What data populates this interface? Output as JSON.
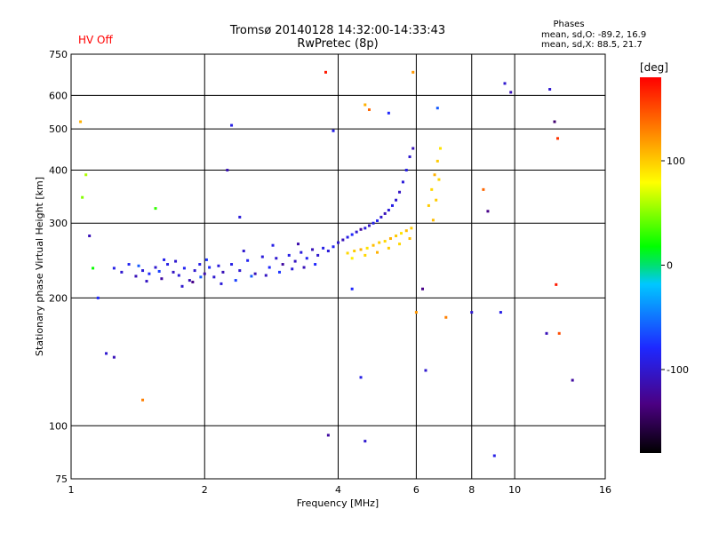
{
  "header": {
    "title_line1": "Tromsø 20140128 14:32:00-14:33:43",
    "title_line2": "RwPretec (8p)",
    "status": "HV Off",
    "status_color": "#ff0000",
    "phases_title": "Phases",
    "phases_o": "mean, sd,O: -89.2, 16.9",
    "phases_x": "mean, sd,X: 88.5, 21.7"
  },
  "colorbar": {
    "unit": "[deg]",
    "range": [
      -180,
      180
    ],
    "ticks": [
      {
        "value": 100,
        "label": "100"
      },
      {
        "value": 0,
        "label": "0"
      },
      {
        "value": -100,
        "label": "-100"
      }
    ]
  },
  "chart_data": {
    "type": "scatter",
    "xlabel": "Frequency [MHz]",
    "ylabel": "Stationary phase Virtual Height [km]",
    "xscale": "log",
    "yscale": "log",
    "xlim": [
      1,
      16
    ],
    "ylim": [
      75,
      750
    ],
    "xticks": [
      {
        "value": 1,
        "label": "1"
      },
      {
        "value": 2,
        "label": "2"
      },
      {
        "value": 4,
        "label": "4"
      },
      {
        "value": 6,
        "label": "6"
      },
      {
        "value": 8,
        "label": "8"
      },
      {
        "value": 10,
        "label": "10"
      },
      {
        "value": 16,
        "label": "16"
      }
    ],
    "yticks": [
      {
        "value": 75,
        "label": "75"
      },
      {
        "value": 100,
        "label": "100"
      },
      {
        "value": 200,
        "label": "200"
      },
      {
        "value": 300,
        "label": "300"
      },
      {
        "value": 400,
        "label": "400"
      },
      {
        "value": 500,
        "label": "500"
      },
      {
        "value": 600,
        "label": "600"
      },
      {
        "value": 750,
        "label": "750"
      }
    ],
    "grid": true,
    "series": [
      {
        "values": [
          [
            1.25,
            235,
            -90
          ],
          [
            1.3,
            230,
            -100
          ],
          [
            1.35,
            240,
            -85
          ],
          [
            1.4,
            225,
            -110
          ],
          [
            1.45,
            232,
            -95
          ],
          [
            1.5,
            228,
            -80
          ],
          [
            1.55,
            236,
            -100
          ],
          [
            1.6,
            222,
            -120
          ],
          [
            1.65,
            240,
            -90
          ],
          [
            1.7,
            230,
            -105
          ],
          [
            1.75,
            226,
            -95
          ],
          [
            1.8,
            235,
            -85
          ],
          [
            1.85,
            220,
            -110
          ],
          [
            1.9,
            232,
            -100
          ],
          [
            1.95,
            240,
            -90
          ],
          [
            2.0,
            228,
            -115
          ],
          [
            2.05,
            236,
            -80
          ],
          [
            2.1,
            224,
            -100
          ],
          [
            2.15,
            238,
            -95
          ],
          [
            2.2,
            230,
            -110
          ],
          [
            1.42,
            238,
            -60
          ],
          [
            1.58,
            231,
            -70
          ],
          [
            1.72,
            244,
            -100
          ],
          [
            1.88,
            218,
            -130
          ],
          [
            2.02,
            246,
            -75
          ],
          [
            2.18,
            216,
            -95
          ],
          [
            1.48,
            219,
            -105
          ],
          [
            1.62,
            246,
            -88
          ],
          [
            1.78,
            213,
            -100
          ],
          [
            1.96,
            224,
            -60
          ],
          [
            2.3,
            240,
            -90
          ],
          [
            2.4,
            232,
            -100
          ],
          [
            2.5,
            245,
            -85
          ],
          [
            2.6,
            228,
            -110
          ],
          [
            2.7,
            250,
            -95
          ],
          [
            2.8,
            236,
            -80
          ],
          [
            2.9,
            248,
            -100
          ],
          [
            3.0,
            240,
            -120
          ],
          [
            3.1,
            252,
            -90
          ],
          [
            3.2,
            244,
            -105
          ],
          [
            3.3,
            256,
            -95
          ],
          [
            3.4,
            248,
            -85
          ],
          [
            3.5,
            260,
            -110
          ],
          [
            3.6,
            252,
            -100
          ],
          [
            3.7,
            262,
            -90
          ],
          [
            2.35,
            220,
            -70
          ],
          [
            2.55,
            225,
            -60
          ],
          [
            2.75,
            226,
            -105
          ],
          [
            2.95,
            230,
            -75
          ],
          [
            3.15,
            234,
            -95
          ],
          [
            3.35,
            236,
            -110
          ],
          [
            3.55,
            240,
            -80
          ],
          [
            2.45,
            258,
            -100
          ],
          [
            2.85,
            266,
            -90
          ],
          [
            3.25,
            268,
            -115
          ],
          [
            3.8,
            258,
            -95
          ],
          [
            3.9,
            264,
            -85
          ],
          [
            4.0,
            270,
            -100
          ],
          [
            4.1,
            274,
            -110
          ],
          [
            4.2,
            278,
            -90
          ],
          [
            4.3,
            282,
            -80
          ],
          [
            4.4,
            286,
            -100
          ],
          [
            4.5,
            290,
            -120
          ],
          [
            4.6,
            292,
            -95
          ],
          [
            4.7,
            296,
            -105
          ],
          [
            4.8,
            300,
            -90
          ],
          [
            4.9,
            304,
            -85
          ],
          [
            5.0,
            310,
            -100
          ],
          [
            5.1,
            316,
            -110
          ],
          [
            5.2,
            322,
            -95
          ],
          [
            5.3,
            330,
            -90
          ],
          [
            5.4,
            340,
            -100
          ],
          [
            5.5,
            355,
            -105
          ],
          [
            5.6,
            375,
            -95
          ],
          [
            5.7,
            400,
            -90
          ],
          [
            5.8,
            430,
            -100
          ],
          [
            5.9,
            450,
            -110
          ],
          [
            4.2,
            255,
            95
          ],
          [
            4.35,
            258,
            100
          ],
          [
            4.5,
            260,
            110
          ],
          [
            4.65,
            262,
            90
          ],
          [
            4.8,
            266,
            105
          ],
          [
            4.95,
            270,
            100
          ],
          [
            5.1,
            272,
            95
          ],
          [
            5.25,
            276,
            110
          ],
          [
            5.4,
            280,
            100
          ],
          [
            5.55,
            284,
            90
          ],
          [
            5.7,
            288,
            105
          ],
          [
            5.85,
            292,
            100
          ],
          [
            4.3,
            248,
            85
          ],
          [
            4.6,
            252,
            95
          ],
          [
            4.9,
            256,
            110
          ],
          [
            5.2,
            262,
            100
          ],
          [
            5.5,
            268,
            95
          ],
          [
            5.8,
            276,
            105
          ],
          [
            6.4,
            330,
            100
          ],
          [
            6.5,
            360,
            95
          ],
          [
            6.6,
            390,
            110
          ],
          [
            6.7,
            420,
            100
          ],
          [
            6.8,
            450,
            90
          ],
          [
            6.55,
            305,
            105
          ],
          [
            6.65,
            340,
            100
          ],
          [
            6.75,
            380,
            95
          ],
          [
            1.05,
            520,
            110
          ],
          [
            1.08,
            390,
            60
          ],
          [
            1.06,
            345,
            50
          ],
          [
            1.1,
            280,
            -110
          ],
          [
            1.12,
            235,
            20
          ],
          [
            1.2,
            148,
            -100
          ],
          [
            1.25,
            145,
            -110
          ],
          [
            1.55,
            325,
            30
          ],
          [
            1.45,
            115,
            130
          ],
          [
            2.25,
            400,
            -110
          ],
          [
            2.3,
            510,
            -90
          ],
          [
            2.4,
            310,
            -95
          ],
          [
            3.75,
            680,
            170
          ],
          [
            3.9,
            495,
            -90
          ],
          [
            4.6,
            570,
            110
          ],
          [
            4.7,
            555,
            140
          ],
          [
            5.2,
            545,
            -80
          ],
          [
            5.9,
            680,
            120
          ],
          [
            6.7,
            560,
            -60
          ],
          [
            7.0,
            180,
            130
          ],
          [
            8.5,
            360,
            140
          ],
          [
            8.7,
            320,
            -130
          ],
          [
            9.5,
            640,
            -100
          ],
          [
            9.8,
            610,
            -110
          ],
          [
            12.0,
            620,
            -100
          ],
          [
            12.3,
            520,
            -140
          ],
          [
            12.5,
            475,
            160
          ],
          [
            12.4,
            215,
            170
          ],
          [
            11.8,
            165,
            -110
          ],
          [
            12.6,
            165,
            150
          ],
          [
            13.5,
            128,
            -120
          ],
          [
            9.0,
            85,
            -90
          ],
          [
            8.0,
            185,
            -100
          ],
          [
            9.3,
            185,
            -90
          ],
          [
            3.8,
            95,
            -120
          ],
          [
            4.6,
            92,
            -100
          ],
          [
            4.5,
            130,
            -90
          ],
          [
            6.3,
            135,
            -100
          ],
          [
            6.2,
            210,
            -130
          ],
          [
            4.3,
            210,
            -80
          ],
          [
            6.0,
            185,
            120
          ],
          [
            1.15,
            200,
            -80
          ]
        ]
      }
    ]
  }
}
